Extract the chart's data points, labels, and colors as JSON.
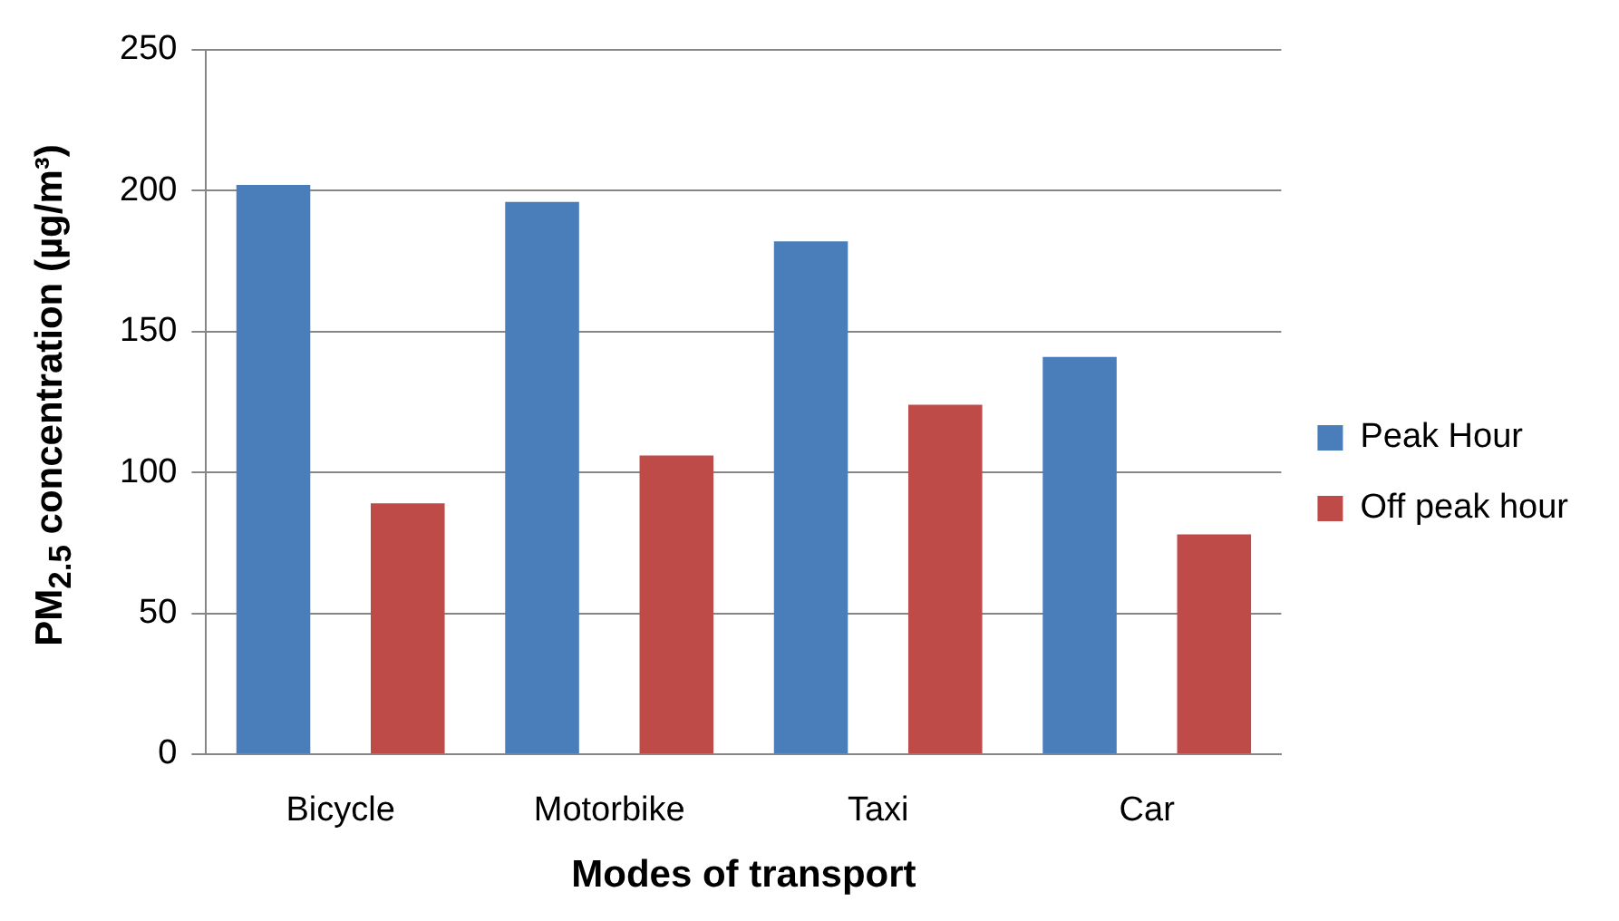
{
  "chart_data": {
    "type": "bar",
    "xlabel": "Modes of transport",
    "ylabel": "PM$_{2.5}$ concentration (µg/m³)",
    "categories": [
      "Bicycle",
      "Motorbike",
      "Taxi",
      "Car"
    ],
    "series": [
      {
        "name": "Peak Hour",
        "color": "#4a7ebb",
        "values": [
          202,
          196,
          182,
          141
        ]
      },
      {
        "name": "Off peak hour",
        "color": "#be4b48",
        "values": [
          89,
          106,
          124,
          78
        ]
      }
    ],
    "ylim": [
      0,
      250
    ],
    "yticks": [
      0,
      50,
      100,
      150,
      200,
      250
    ],
    "grid": "y",
    "legend": "right"
  }
}
